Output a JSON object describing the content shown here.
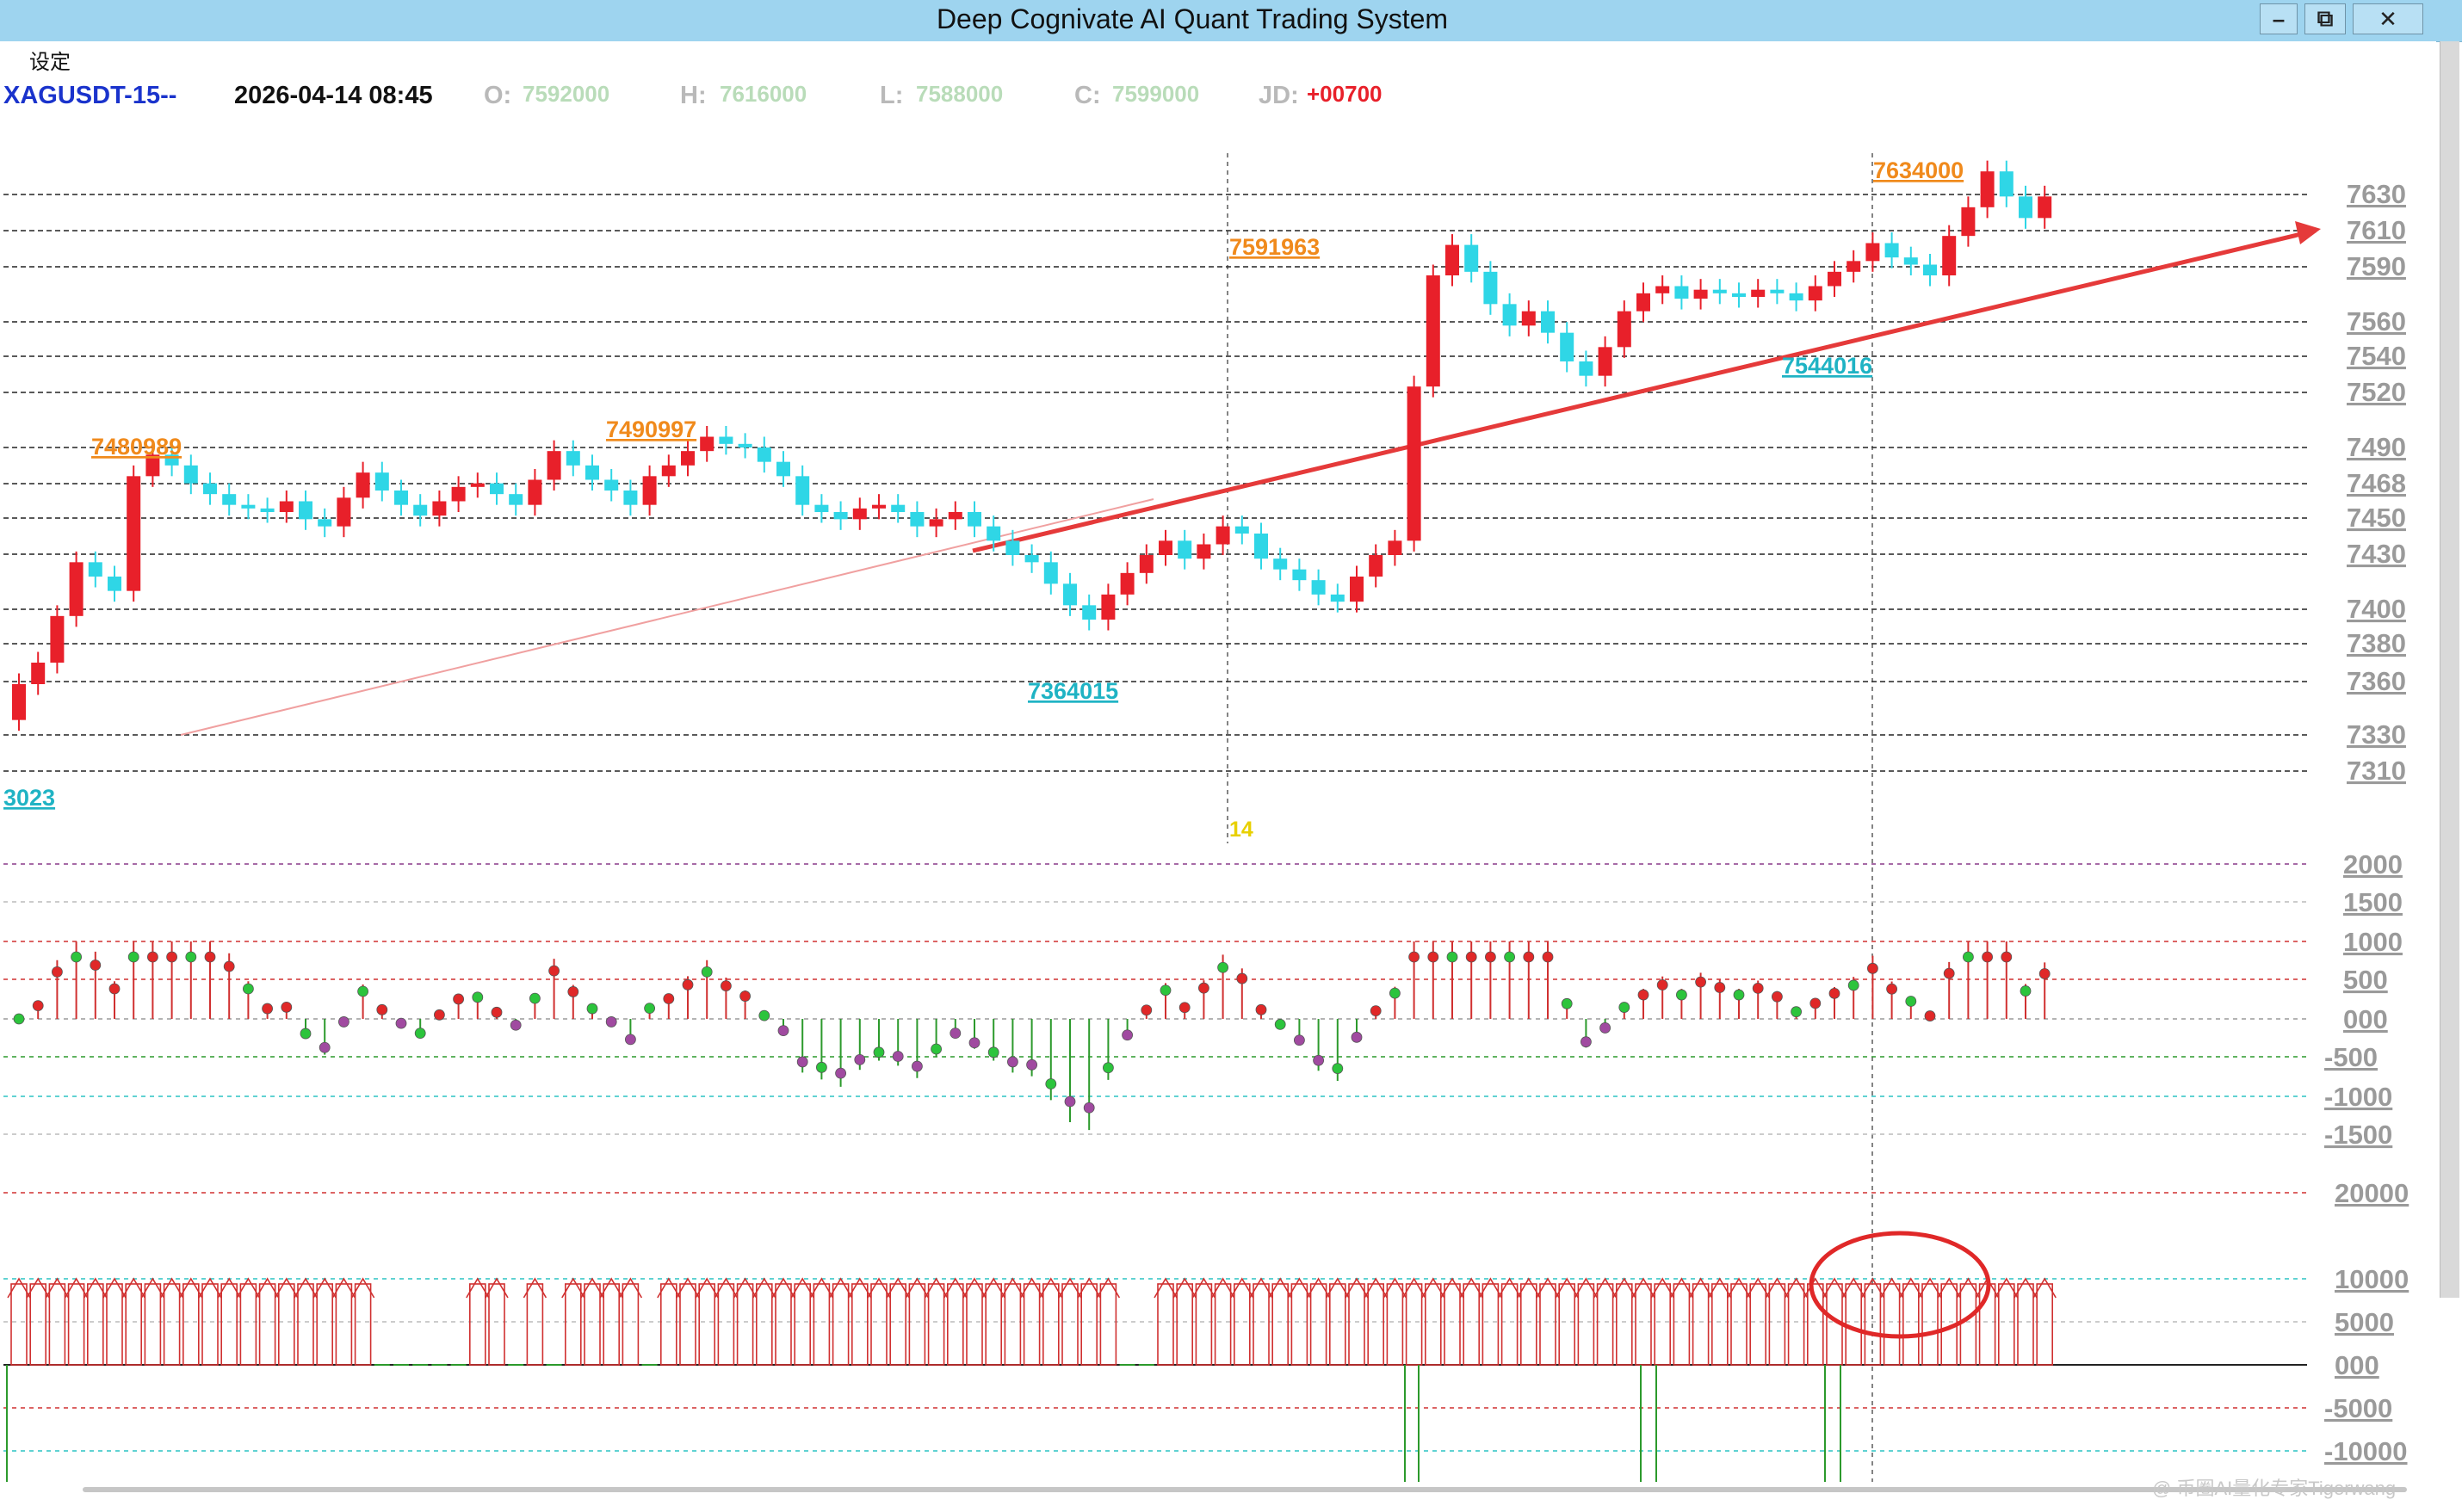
{
  "window": {
    "title": "Deep Cognivate AI Quant Trading System",
    "buttons": [
      "–",
      "⧉",
      "✕"
    ]
  },
  "menu": {
    "settings": "设定"
  },
  "header": {
    "symbol": "XAGUSDT-15--",
    "datetime": "2026-04-14 08:45",
    "open_label": "O:",
    "open_value": "7592000",
    "high_label": "H:",
    "high_value": "7616000",
    "low_label": "L:",
    "low_value": "7588000",
    "close_label": "C:",
    "close_value": "7599000",
    "jd_label": "JD:",
    "jd_value": "+00700"
  },
  "watermark": "@ 币圈AI量化专家Tigerwang",
  "colors": {
    "up": "#e8202a",
    "down": "#2fd6e6",
    "trend": "#e53a3a",
    "high_label": "#f08a1c",
    "low_label": "#1fb3c4",
    "symbol": "#1a33cc",
    "grid": "#222222",
    "highlight_circle": "#e02828"
  },
  "chart_data": {
    "type": "candlestick",
    "price_axis_labels": [
      "7630",
      "7610",
      "7590",
      "7560",
      "7540",
      "7520",
      "7490",
      "7468",
      "7450",
      "7430",
      "7400",
      "7380",
      "7360",
      "7330",
      "7310"
    ],
    "annotations": {
      "highs": [
        "7480989",
        "7490997",
        "7591963",
        "7634000"
      ],
      "lows": [
        "7364015",
        "7544016",
        "3023"
      ],
      "date_marker": "14"
    },
    "anchors": {
      "p0": 7280,
      "p1": 7640,
      "bar_count": 107
    },
    "closes": [
      7340,
      7352,
      7378,
      7408,
      7400,
      7392,
      7456,
      7468,
      7462,
      7452,
      7446,
      7440,
      7438,
      7436,
      7442,
      7432,
      7428,
      7444,
      7458,
      7448,
      7440,
      7434,
      7442,
      7450,
      7452,
      7446,
      7440,
      7454,
      7470,
      7462,
      7454,
      7448,
      7440,
      7456,
      7462,
      7470,
      7478,
      7474,
      7472,
      7464,
      7456,
      7440,
      7436,
      7432,
      7438,
      7440,
      7436,
      7428,
      7432,
      7436,
      7428,
      7420,
      7412,
      7408,
      7396,
      7384,
      7376,
      7390,
      7402,
      7412,
      7420,
      7410,
      7418,
      7428,
      7424,
      7410,
      7404,
      7398,
      7390,
      7386,
      7400,
      7412,
      7420,
      7506,
      7568,
      7585,
      7570,
      7552,
      7540,
      7548,
      7536,
      7520,
      7512,
      7528,
      7548,
      7558,
      7562,
      7555,
      7560,
      7558,
      7556,
      7560,
      7558,
      7554,
      7562,
      7570,
      7576,
      7586,
      7578,
      7574,
      7568,
      7590,
      7606,
      7626,
      7612,
      7600,
      7612
    ],
    "macd_axis_labels": [
      "2000",
      "1500",
      "1000",
      "500",
      "000",
      "-500",
      "-1000",
      "-1500"
    ],
    "lower_axis_labels": [
      "20000",
      "10000",
      "5000",
      "000",
      "-5000",
      "-10000"
    ]
  }
}
